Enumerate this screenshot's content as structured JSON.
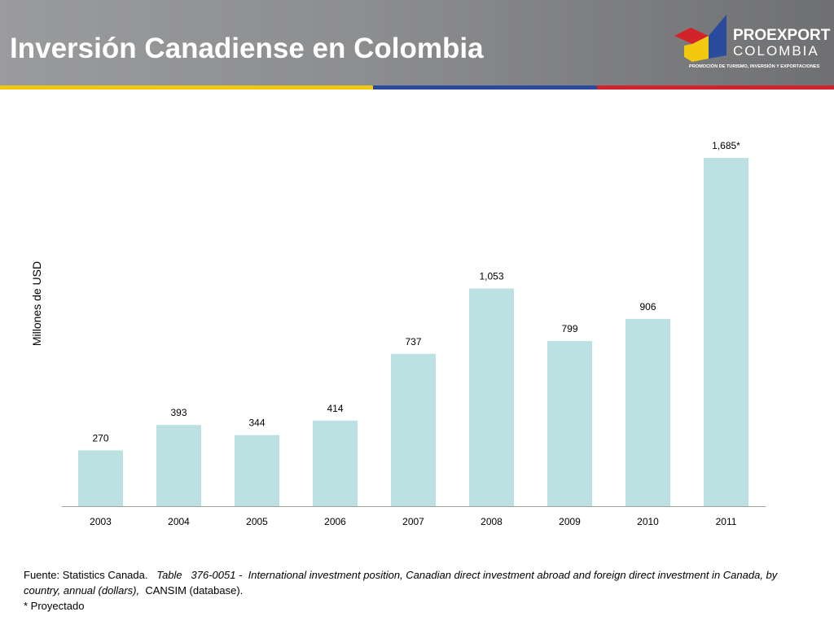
{
  "header": {
    "title": "Inversión Canadiense en Colombia"
  },
  "logo": {
    "brand_line1": "PROEXPORT",
    "brand_line2": "COLOMBIA",
    "tagline": "PROMOCIÓN DE TURISMO, INVERSIÓN Y EXPORTACIONES"
  },
  "colors": {
    "bar": "#bce1e3",
    "stripe_yellow": "#f2c811",
    "stripe_blue": "#2a4b9b",
    "stripe_red": "#d2232a"
  },
  "chart_data": {
    "type": "bar",
    "title": "Inversión Canadiense en Colombia",
    "xlabel": "",
    "ylabel": "Millones de USD",
    "categories": [
      "2003",
      "2004",
      "2005",
      "2006",
      "2007",
      "2008",
      "2009",
      "2010",
      "2011"
    ],
    "values": [
      270,
      393,
      344,
      414,
      737,
      1053,
      799,
      906,
      1685
    ],
    "data_labels": [
      "270",
      "393",
      "344",
      "414",
      "737",
      "1,053",
      "799",
      "906",
      "1,685*"
    ],
    "ylim": [
      0,
      1685
    ],
    "grid": false,
    "legend": "none"
  },
  "source": {
    "prefix": "Fuente: Statistics Canada.",
    "table_label": "Table",
    "table_ref": "376-0051 -",
    "italic_text": "International investment position, Canadian direct investment abroad and foreign direct investment in Canada, by country, annual (dollars),",
    "suffix": "CANSIM (database).",
    "note": "* Proyectado"
  }
}
